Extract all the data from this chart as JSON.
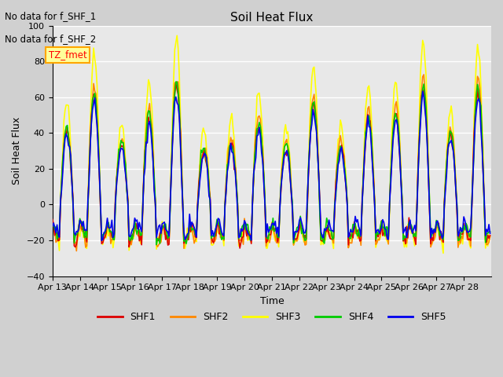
{
  "title": "Soil Heat Flux",
  "xlabel": "Time",
  "ylabel": "Soil Heat Flux",
  "ylim": [
    -40,
    100
  ],
  "yticks": [
    -40,
    -20,
    0,
    20,
    40,
    60,
    80,
    100
  ],
  "xtick_labels": [
    "Apr 13",
    "Apr 14",
    "Apr 15",
    "Apr 16",
    "Apr 17",
    "Apr 18",
    "Apr 19",
    "Apr 20",
    "Apr 21",
    "Apr 22",
    "Apr 23",
    "Apr 24",
    "Apr 25",
    "Apr 26",
    "Apr 27",
    "Apr 28"
  ],
  "colors": {
    "SHF1": "#dd0000",
    "SHF2": "#ff8800",
    "SHF3": "#ffff00",
    "SHF4": "#00cc00",
    "SHF5": "#0000ee"
  },
  "legend_entries": [
    "SHF1",
    "SHF2",
    "SHF3",
    "SHF4",
    "SHF5"
  ],
  "annot1": "No data for f_SHF_1",
  "annot2": "No data for f_SHF_2",
  "tz_label": "TZ_fmet",
  "plot_bg_color": "#e8e8e8",
  "fig_bg_color": "#d0d0d0",
  "grid_color": "white",
  "linewidth": 1.2,
  "num_days": 16,
  "pts_per_day": 24,
  "daily_peaks": [
    55,
    82,
    45,
    66,
    89,
    40,
    45,
    60,
    42,
    75,
    43,
    65,
    66,
    86,
    52,
    85
  ]
}
